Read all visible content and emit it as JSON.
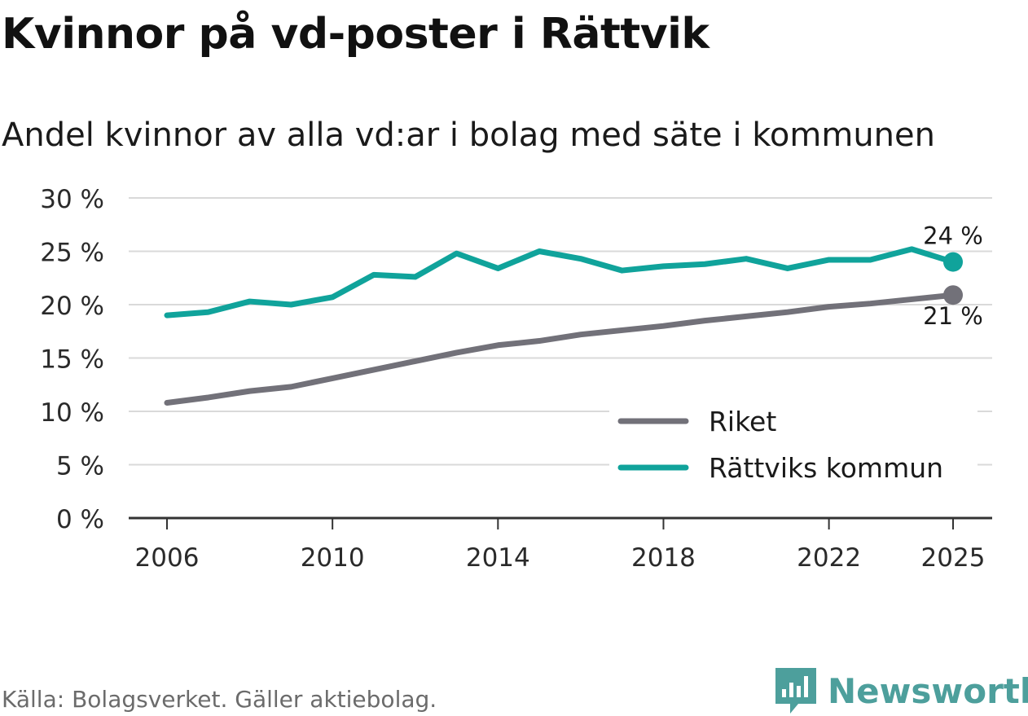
{
  "title": "Kvinnor på vd-poster i Rättvik",
  "subtitle": "Andel kvinnor av alla vd:ar i bolag med säte i kommunen",
  "source": "Källa: Bolagsverket. Gäller aktiebolag.",
  "brand": {
    "name": "Newsworthy",
    "icon": "newsworthy-logo-icon"
  },
  "colors": {
    "riket": "#727179",
    "rattvik": "#10a39b",
    "grid": "#d9d9d9",
    "axis": "#333333",
    "brand": "#4d9f9c"
  },
  "chart_data": {
    "type": "line",
    "title": "Kvinnor på vd-poster i Rättvik",
    "xlabel": "",
    "ylabel": "",
    "x": [
      2006,
      2007,
      2008,
      2009,
      2010,
      2011,
      2012,
      2013,
      2014,
      2015,
      2016,
      2017,
      2018,
      2019,
      2020,
      2021,
      2022,
      2023,
      2024,
      2025
    ],
    "xlim": [
      2006,
      2025
    ],
    "ylim": [
      0,
      30
    ],
    "x_ticks": [
      {
        "value": 2006,
        "label": "2006"
      },
      {
        "value": 2010,
        "label": "2010"
      },
      {
        "value": 2014,
        "label": "2014"
      },
      {
        "value": 2018,
        "label": "2018"
      },
      {
        "value": 2022,
        "label": "2022"
      },
      {
        "value": 2025,
        "label": "2025"
      }
    ],
    "y_ticks": [
      {
        "value": 0,
        "label": "0 %"
      },
      {
        "value": 5,
        "label": "5 %"
      },
      {
        "value": 10,
        "label": "10 %"
      },
      {
        "value": 15,
        "label": "15 %"
      },
      {
        "value": 20,
        "label": "20 %"
      },
      {
        "value": 25,
        "label": "25 %"
      },
      {
        "value": 30,
        "label": "30 %"
      }
    ],
    "grid": true,
    "legend_position": "bottom-right",
    "series": [
      {
        "key": "riket",
        "name": "Riket",
        "color": "#727179",
        "values": [
          10.8,
          11.3,
          11.9,
          12.3,
          13.1,
          13.9,
          14.7,
          15.5,
          16.2,
          16.6,
          17.2,
          17.6,
          18.0,
          18.5,
          18.9,
          19.3,
          19.8,
          20.1,
          20.5,
          20.9
        ],
        "end_label": "21 %",
        "end_label_position": "below"
      },
      {
        "key": "rattvik",
        "name": "Rättviks kommun",
        "color": "#10a39b",
        "values": [
          19.0,
          19.3,
          20.3,
          20.0,
          20.7,
          22.8,
          22.6,
          24.8,
          23.4,
          25.0,
          24.3,
          23.2,
          23.6,
          23.8,
          24.3,
          23.4,
          24.2,
          24.2,
          25.2,
          24.0
        ],
        "end_label": "24 %",
        "end_label_position": "above"
      }
    ]
  }
}
